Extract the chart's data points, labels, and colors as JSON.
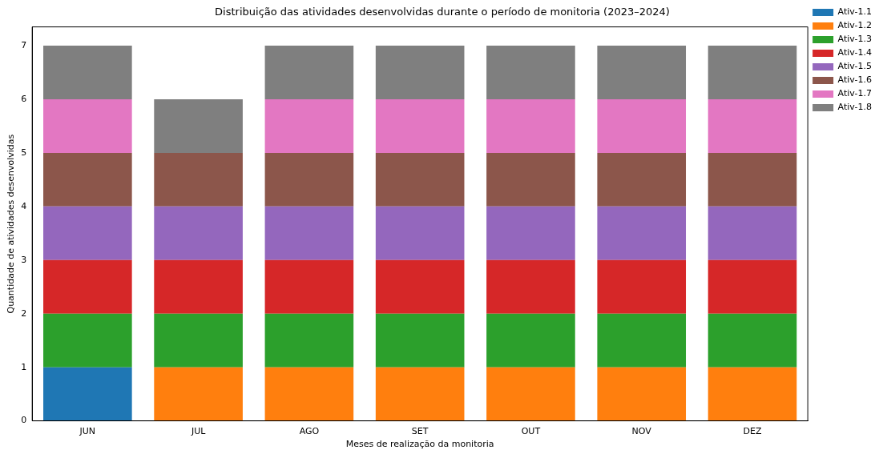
{
  "chart_data": {
    "type": "bar",
    "title": "Distribuição das atividades desenvolvidas durante o período de monitoria (2023–2024)",
    "xlabel": "Meses de realização da monitoria",
    "ylabel": "Quantidade de atividades desenvolvidas",
    "categories": [
      "JUN",
      "JUL",
      "AGO",
      "SET",
      "OUT",
      "NOV",
      "DEZ"
    ],
    "stacked": true,
    "ylim": [
      0,
      7.35
    ],
    "yticks": [
      0,
      1,
      2,
      3,
      4,
      5,
      6,
      7
    ],
    "grid": false,
    "legend": "top right",
    "series": [
      {
        "name": "Ativ-1.1",
        "color": "#1f77b4",
        "values": [
          1,
          0,
          0,
          0,
          0,
          0,
          0
        ]
      },
      {
        "name": "Ativ-1.2",
        "color": "#ff7f0e",
        "values": [
          0,
          1,
          1,
          1,
          1,
          1,
          1
        ]
      },
      {
        "name": "Ativ-1.3",
        "color": "#2ca02c",
        "values": [
          1,
          1,
          1,
          1,
          1,
          1,
          1
        ]
      },
      {
        "name": "Ativ-1.4",
        "color": "#d62728",
        "values": [
          1,
          1,
          1,
          1,
          1,
          1,
          1
        ]
      },
      {
        "name": "Ativ-1.5",
        "color": "#9467bd",
        "values": [
          1,
          1,
          1,
          1,
          1,
          1,
          1
        ]
      },
      {
        "name": "Ativ-1.6",
        "color": "#8c564b",
        "values": [
          1,
          1,
          1,
          1,
          1,
          1,
          1
        ]
      },
      {
        "name": "Ativ-1.7",
        "color": "#e377c2",
        "values": [
          1,
          0,
          1,
          1,
          1,
          1,
          1
        ]
      },
      {
        "name": "Ativ-1.8",
        "color": "#7f7f7f",
        "values": [
          1,
          1,
          1,
          1,
          1,
          1,
          1
        ]
      }
    ]
  }
}
